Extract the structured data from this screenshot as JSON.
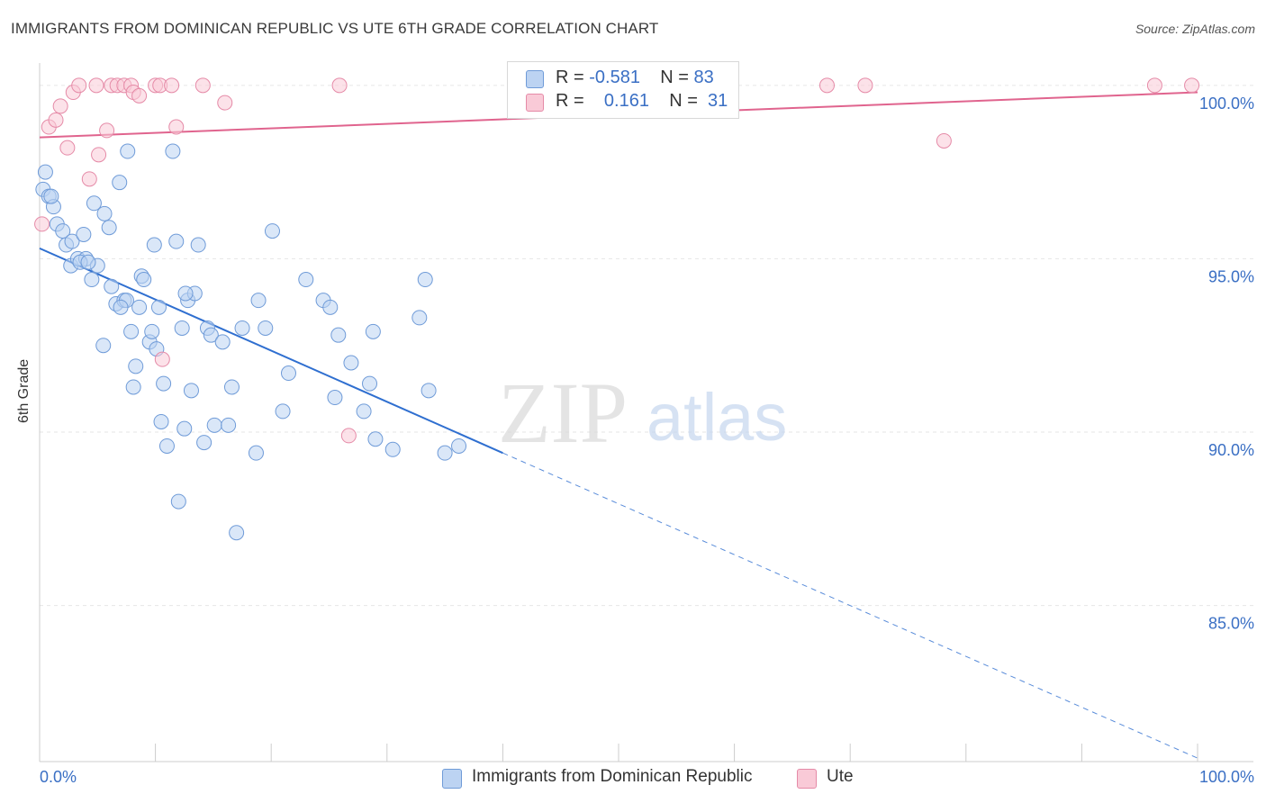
{
  "title": "IMMIGRANTS FROM DOMINICAN REPUBLIC VS UTE 6TH GRADE CORRELATION CHART",
  "source": "Source: ZipAtlas.com",
  "watermark": {
    "zip": "ZIP",
    "atlas": "atlas"
  },
  "legend": {
    "rows": [
      {
        "r_label": "R =",
        "r_value": "-0.581",
        "n_label": "N =",
        "n_value": "83",
        "color": "#a9c7ef",
        "border": "#6f9bd8"
      },
      {
        "r_label": "R =",
        "r_value": "0.161",
        "n_label": "N =",
        "n_value": "31",
        "color": "#f6bccd",
        "border": "#e58aa7"
      }
    ]
  },
  "bottom_legend": [
    {
      "label": "Immigrants from Dominican Republic",
      "color": "#bcd3f2",
      "border": "#6f9bd8"
    },
    {
      "label": "Ute",
      "color": "#f9cad7",
      "border": "#e58aa7"
    }
  ],
  "chart_data": {
    "type": "scatter",
    "xlabel": "",
    "ylabel": "6th Grade",
    "xlim": [
      0,
      100
    ],
    "ylim": [
      80.5,
      100.8
    ],
    "x_tick_labels": [
      {
        "x": 0,
        "label": "0.0%"
      },
      {
        "x": 100,
        "label": "100.0%"
      }
    ],
    "y_tick_labels": [
      {
        "y": 100,
        "label": "100.0%"
      },
      {
        "y": 95,
        "label": "95.0%"
      },
      {
        "y": 90,
        "label": "90.0%"
      },
      {
        "y": 85,
        "label": "85.0%"
      }
    ],
    "grid": true,
    "series": [
      {
        "name": "Immigrants from Dominican Republic",
        "color": "#6f9bd8",
        "fill": "#bcd3f2",
        "trend": {
          "x0": 0,
          "y0": 95.3,
          "x1": 40,
          "y1": 89.4,
          "dashed_to_x": 100,
          "dashed_to_y": 80.6,
          "color": "#2f6fd0"
        },
        "points": [
          [
            0.3,
            97.0
          ],
          [
            0.5,
            97.5
          ],
          [
            0.8,
            96.8
          ],
          [
            1.2,
            96.5
          ],
          [
            1.5,
            96.0
          ],
          [
            2.0,
            95.8
          ],
          [
            2.3,
            95.4
          ],
          [
            2.8,
            95.5
          ],
          [
            2.7,
            94.8
          ],
          [
            3.3,
            95.0
          ],
          [
            3.8,
            95.7
          ],
          [
            4.0,
            95.0
          ],
          [
            4.5,
            94.4
          ],
          [
            5.0,
            94.8
          ],
          [
            4.7,
            96.6
          ],
          [
            5.6,
            96.3
          ],
          [
            6.0,
            95.9
          ],
          [
            6.2,
            94.2
          ],
          [
            6.6,
            93.7
          ],
          [
            6.9,
            97.2
          ],
          [
            7.3,
            93.8
          ],
          [
            5.5,
            92.5
          ],
          [
            7.5,
            93.8
          ],
          [
            7.6,
            98.1
          ],
          [
            7.9,
            92.9
          ],
          [
            8.1,
            91.3
          ],
          [
            8.3,
            91.9
          ],
          [
            8.6,
            93.6
          ],
          [
            8.8,
            94.5
          ],
          [
            9.0,
            94.4
          ],
          [
            9.5,
            92.6
          ],
          [
            9.7,
            92.9
          ],
          [
            9.9,
            95.4
          ],
          [
            10.1,
            92.4
          ],
          [
            10.3,
            93.6
          ],
          [
            10.5,
            90.3
          ],
          [
            10.7,
            91.4
          ],
          [
            11.0,
            89.6
          ],
          [
            11.5,
            98.1
          ],
          [
            11.8,
            95.5
          ],
          [
            12.0,
            88.0
          ],
          [
            12.3,
            93.0
          ],
          [
            12.5,
            90.1
          ],
          [
            12.8,
            93.8
          ],
          [
            13.1,
            91.2
          ],
          [
            13.4,
            94.0
          ],
          [
            13.7,
            95.4
          ],
          [
            14.2,
            89.7
          ],
          [
            14.5,
            93.0
          ],
          [
            14.8,
            92.8
          ],
          [
            15.1,
            90.2
          ],
          [
            15.8,
            92.6
          ],
          [
            16.3,
            90.2
          ],
          [
            16.6,
            91.3
          ],
          [
            17.0,
            87.1
          ],
          [
            17.5,
            93.0
          ],
          [
            18.7,
            89.4
          ],
          [
            18.9,
            93.8
          ],
          [
            19.5,
            93.0
          ],
          [
            20.1,
            95.8
          ],
          [
            21.0,
            90.6
          ],
          [
            21.5,
            91.7
          ],
          [
            23.0,
            94.4
          ],
          [
            24.5,
            93.8
          ],
          [
            25.1,
            93.6
          ],
          [
            25.5,
            91.0
          ],
          [
            25.8,
            92.8
          ],
          [
            26.9,
            92.0
          ],
          [
            28.0,
            90.6
          ],
          [
            28.5,
            91.4
          ],
          [
            28.8,
            92.9
          ],
          [
            29.0,
            89.8
          ],
          [
            30.5,
            89.5
          ],
          [
            32.8,
            93.3
          ],
          [
            33.3,
            94.4
          ],
          [
            33.6,
            91.2
          ],
          [
            35.0,
            89.4
          ],
          [
            36.2,
            89.6
          ],
          [
            1.0,
            96.8
          ],
          [
            3.5,
            94.9
          ],
          [
            4.2,
            94.9
          ],
          [
            7.0,
            93.6
          ],
          [
            12.6,
            94.0
          ]
        ]
      },
      {
        "name": "Ute",
        "color": "#e58aa7",
        "fill": "#f9cad7",
        "trend": {
          "x0": 0,
          "y0": 98.5,
          "x1": 100,
          "y1": 99.8,
          "color": "#e0648e"
        },
        "points": [
          [
            0.2,
            96.0
          ],
          [
            0.8,
            98.8
          ],
          [
            1.4,
            99.0
          ],
          [
            1.8,
            99.4
          ],
          [
            2.4,
            98.2
          ],
          [
            2.9,
            99.8
          ],
          [
            3.4,
            100.0
          ],
          [
            4.3,
            97.3
          ],
          [
            4.9,
            100.0
          ],
          [
            5.1,
            98.0
          ],
          [
            5.8,
            98.7
          ],
          [
            6.2,
            100.0
          ],
          [
            6.7,
            100.0
          ],
          [
            7.3,
            100.0
          ],
          [
            7.9,
            100.0
          ],
          [
            8.1,
            99.8
          ],
          [
            8.6,
            99.7
          ],
          [
            10.0,
            100.0
          ],
          [
            10.4,
            100.0
          ],
          [
            10.6,
            92.1
          ],
          [
            11.4,
            100.0
          ],
          [
            11.8,
            98.8
          ],
          [
            14.1,
            100.0
          ],
          [
            16.0,
            99.5
          ],
          [
            25.9,
            100.0
          ],
          [
            26.7,
            89.9
          ],
          [
            68.0,
            100.0
          ],
          [
            71.3,
            100.0
          ],
          [
            78.1,
            98.4
          ],
          [
            96.3,
            100.0
          ],
          [
            99.5,
            100.0
          ]
        ]
      }
    ]
  }
}
